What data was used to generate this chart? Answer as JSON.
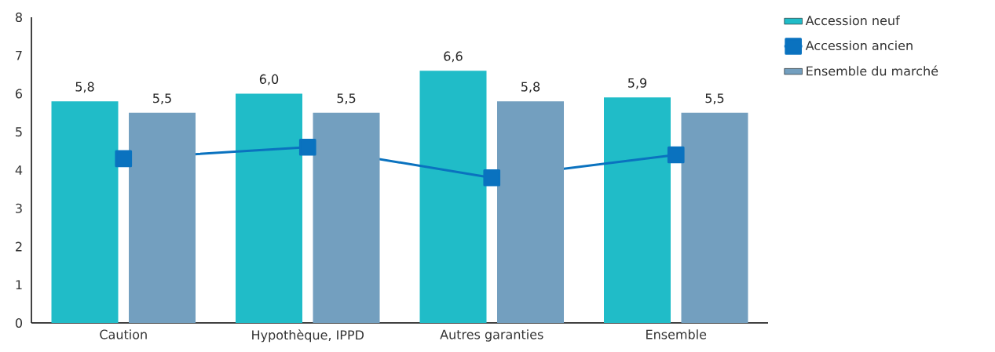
{
  "chart_data": {
    "type": "bar",
    "categories": [
      "Caution",
      "Hypothèque, IPPD",
      "Autres garanties",
      "Ensemble"
    ],
    "series": [
      {
        "name": "Accession neuf",
        "color": "#20bcc8",
        "values": [
          5.8,
          6.0,
          6.6,
          5.9
        ],
        "value_labels": [
          "5,8",
          "6,0",
          "6,6",
          "5,9"
        ]
      },
      {
        "name": "Accession ancien",
        "type": "line",
        "color": "#0a72bf",
        "marker": "square",
        "values": [
          4.3,
          4.6,
          3.8,
          4.4
        ]
      },
      {
        "name": "Ensemble du marché",
        "color": "#739fbf",
        "values": [
          5.5,
          5.5,
          5.8,
          5.5
        ],
        "value_labels": [
          "5,5",
          "5,5",
          "5,8",
          "5,5"
        ]
      }
    ],
    "ylim": [
      0,
      8
    ],
    "yticks": [
      0,
      1,
      2,
      3,
      4,
      5,
      6,
      7,
      8
    ],
    "legend": "top right"
  }
}
